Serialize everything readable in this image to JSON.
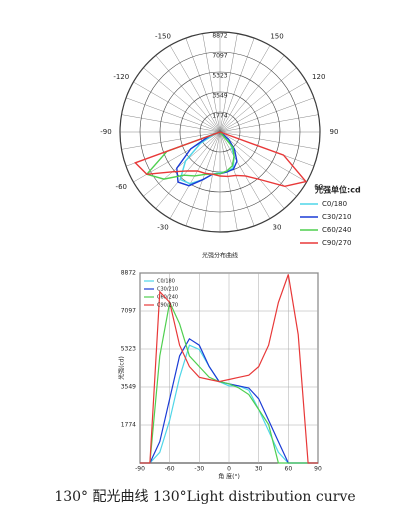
{
  "chart_data": [
    {
      "type": "polar",
      "subtitle": "光强分布曲线",
      "legend_title": "光强单位:cd",
      "x": [
        -90,
        -80,
        -70,
        -60,
        -50,
        -40,
        -30,
        -20,
        -10,
        0,
        10,
        20,
        30,
        40,
        50,
        60,
        70,
        80,
        90
      ],
      "series": [
        {
          "name": "C0/180",
          "color": "#4fd6e8",
          "values": [
            0,
            0,
            500,
            2000,
            4000,
            5500,
            5300,
            4500,
            3800,
            3600,
            3600,
            3400,
            2500,
            1500,
            500,
            0,
            0,
            0,
            0
          ]
        },
        {
          "name": "C30/210",
          "color": "#1a3bd6",
          "values": [
            0,
            0,
            1000,
            3000,
            5000,
            5800,
            5500,
            4500,
            3800,
            3700,
            3600,
            3500,
            3000,
            2000,
            1000,
            0,
            0,
            0,
            0
          ]
        },
        {
          "name": "C60/240",
          "color": "#4fcf4f",
          "values": [
            0,
            0,
            5000,
            7500,
            6500,
            5000,
            4500,
            4000,
            3800,
            3700,
            3500,
            3200,
            2500,
            1800,
            0,
            0,
            0,
            0,
            0
          ]
        },
        {
          "name": "C90/270",
          "color": "#e83838",
          "values": [
            0,
            0,
            8000,
            7500,
            5500,
            4500,
            4000,
            3900,
            3800,
            3900,
            4000,
            4100,
            4500,
            5500,
            7500,
            8800,
            6000,
            0,
            0
          ]
        }
      ],
      "rlim": [
        0,
        8872
      ],
      "rticks": [
        1774,
        3549,
        5323,
        7097,
        8872
      ],
      "angle_ticks": [
        -150,
        -120,
        -90,
        -60,
        -30,
        30,
        60,
        90,
        120,
        150
      ],
      "grid": true
    },
    {
      "type": "line",
      "xlabel": "角 度(°)",
      "ylabel": "光强(cd)",
      "x": [
        -90,
        -80,
        -70,
        -60,
        -50,
        -40,
        -30,
        -20,
        -10,
        0,
        10,
        20,
        30,
        40,
        50,
        60,
        70,
        80,
        90
      ],
      "series": [
        {
          "name": "C0/180",
          "color": "#4fd6e8",
          "values": [
            0,
            0,
            500,
            2000,
            4000,
            5500,
            5300,
            4500,
            3800,
            3600,
            3600,
            3400,
            2500,
            1500,
            500,
            0,
            0,
            0,
            0
          ]
        },
        {
          "name": "C30/210",
          "color": "#1a3bd6",
          "values": [
            0,
            0,
            1000,
            3000,
            5000,
            5800,
            5500,
            4500,
            3800,
            3700,
            3600,
            3500,
            3000,
            2000,
            1000,
            0,
            0,
            0,
            0
          ]
        },
        {
          "name": "C60/240",
          "color": "#4fcf4f",
          "values": [
            0,
            0,
            5000,
            7500,
            6500,
            5000,
            4500,
            4000,
            3800,
            3700,
            3500,
            3200,
            2500,
            1800,
            0,
            0,
            0,
            0,
            0
          ]
        },
        {
          "name": "C90/270",
          "color": "#e83838",
          "values": [
            0,
            0,
            8000,
            7500,
            5500,
            4500,
            4000,
            3900,
            3800,
            3900,
            4000,
            4100,
            4500,
            5500,
            7500,
            8800,
            6000,
            0,
            0
          ]
        }
      ],
      "xlim": [
        -90,
        90
      ],
      "xticks": [
        -90,
        -60,
        -30,
        0,
        30,
        60,
        90
      ],
      "ylim": [
        0,
        8872
      ],
      "yticks": [
        1774,
        3549,
        5323,
        7097,
        8872
      ],
      "grid": true
    },
    {
      "type": "caption",
      "title": "130°  配光曲线   130°Light distribution curve"
    }
  ]
}
